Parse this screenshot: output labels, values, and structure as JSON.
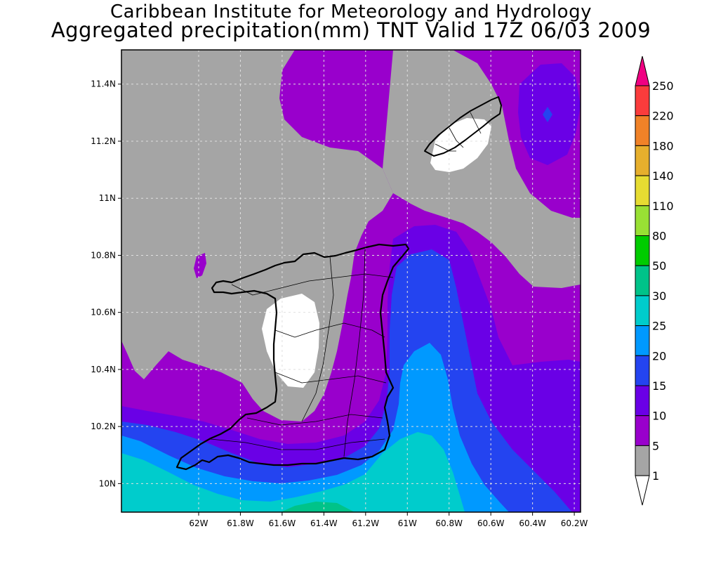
{
  "header": {
    "title": "Caribbean Institute for Meteorology and Hydrology",
    "subtitle": "Aggregated precipitation(mm) TNT Valid 17Z 06/03 2009"
  },
  "map": {
    "lon_range": [
      -62.37,
      -60.17
    ],
    "lat_range": [
      9.9,
      11.52
    ],
    "lat_ticks": [
      {
        "value": 11.4,
        "label": "11.4N"
      },
      {
        "value": 11.2,
        "label": "11.2N"
      },
      {
        "value": 11.0,
        "label": "11N"
      },
      {
        "value": 10.8,
        "label": "10.8N"
      },
      {
        "value": 10.6,
        "label": "10.6N"
      },
      {
        "value": 10.4,
        "label": "10.4N"
      },
      {
        "value": 10.2,
        "label": "10.2N"
      },
      {
        "value": 10.0,
        "label": "10N"
      }
    ],
    "lon_ticks": [
      {
        "value": -62.0,
        "label": "62W"
      },
      {
        "value": -61.8,
        "label": "61.8W"
      },
      {
        "value": -61.6,
        "label": "61.6W"
      },
      {
        "value": -61.4,
        "label": "61.4W"
      },
      {
        "value": -61.2,
        "label": "61.2W"
      },
      {
        "value": -61.0,
        "label": "61W"
      },
      {
        "value": -60.8,
        "label": "60.8W"
      },
      {
        "value": -60.6,
        "label": "60.6W"
      },
      {
        "value": -60.4,
        "label": "60.4W"
      },
      {
        "value": -60.2,
        "label": "60.2W"
      }
    ],
    "grid": true,
    "land_outline": [
      "Trinidad",
      "Tobago"
    ]
  },
  "colorbar": {
    "levels": [
      "1",
      "5",
      "10",
      "15",
      "20",
      "25",
      "30",
      "50",
      "80",
      "110",
      "140",
      "180",
      "220",
      "250"
    ],
    "colors": [
      "#ffffff",
      "#a5a5a5",
      "#9900cc",
      "#6a00e6",
      "#2444f0",
      "#0099ff",
      "#00cccc",
      "#00c389",
      "#00cc00",
      "#99e034",
      "#e6dc32",
      "#e6af2d",
      "#f08228",
      "#fa3c3c",
      "#f00082"
    ]
  }
}
